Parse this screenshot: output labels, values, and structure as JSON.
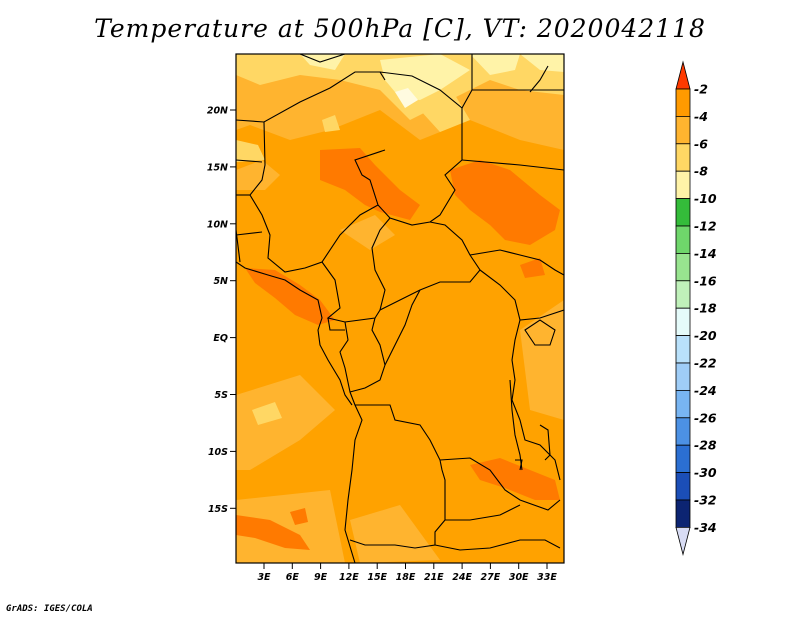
{
  "title": "Temperature at 500hPa [C], VT: 2020042118",
  "footer": "GrADS: IGES/COLA",
  "map": {
    "lat_ticks": [
      "20N",
      "15N",
      "10N",
      "5N",
      "EQ",
      "5S",
      "10S",
      "15S"
    ],
    "lon_ticks": [
      "3E",
      "6E",
      "9E",
      "12E",
      "15E",
      "18E",
      "21E",
      "24E",
      "27E",
      "30E",
      "33E"
    ],
    "base_color": "#ffa200"
  },
  "colorbar": {
    "labels": [
      "-2",
      "-4",
      "-6",
      "-8",
      "-10",
      "-12",
      "-14",
      "-16",
      "-18",
      "-20",
      "-22",
      "-24",
      "-26",
      "-28",
      "-30",
      "-32",
      "-34"
    ],
    "colors": [
      "#ff5a00",
      "#ff9a00",
      "#ffb42f",
      "#ffd764",
      "#fff3a8",
      "#34bc3a",
      "#6fd66b",
      "#98e48f",
      "#c0f1ba",
      "#e5fbfa",
      "#b9e1fb",
      "#9fcdf7",
      "#78b5f2",
      "#4c91e4",
      "#2b6fd2",
      "#1b4eb7",
      "#0c2472",
      "#d8dcf4"
    ],
    "top_color": "#ff3a00"
  }
}
